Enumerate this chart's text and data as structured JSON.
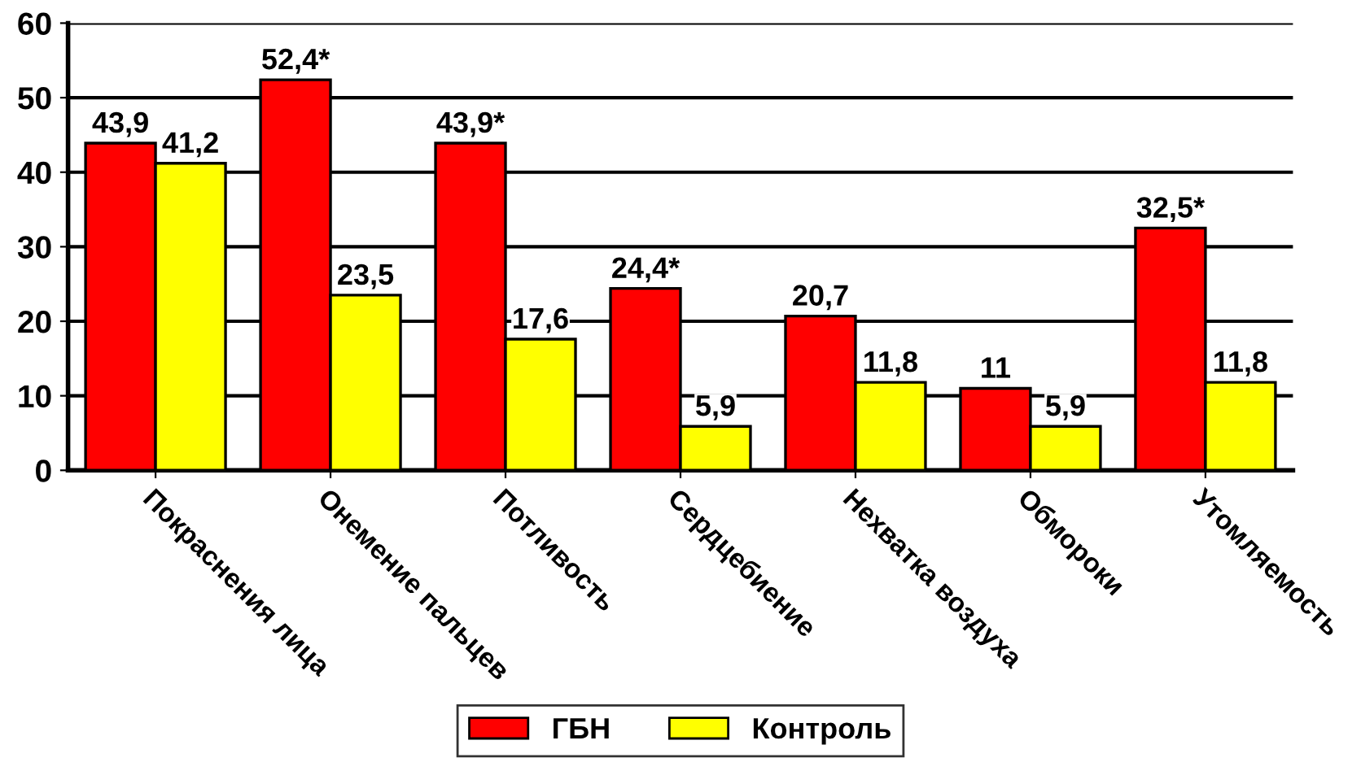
{
  "chart_data": {
    "type": "bar",
    "categories": [
      "Покраснения лица",
      "Онемение пальцев",
      "Потливость",
      "Сердцебиение",
      "Нехватка воздуха",
      "Обмороки",
      "Утомляемость"
    ],
    "series": [
      {
        "name": "ГБН",
        "color": "#ff0000",
        "values": [
          43.9,
          52.4,
          43.9,
          24.4,
          20.7,
          11,
          32.5
        ],
        "value_labels": [
          "43,9",
          "52,4*",
          "43,9*",
          "24,4*",
          "20,7",
          "11",
          "32,5*"
        ]
      },
      {
        "name": "Контроль",
        "color": "#ffff00",
        "values": [
          41.2,
          23.5,
          17.6,
          5.9,
          11.8,
          5.9,
          11.8
        ],
        "value_labels": [
          "41,2",
          "23,5",
          "17,6",
          "5,9",
          "11,8",
          "5,9",
          "11,8"
        ]
      }
    ],
    "ylim": [
      0,
      60
    ],
    "yticks": [
      0,
      10,
      20,
      30,
      40,
      50,
      60
    ],
    "grid": "y",
    "legend": "bottom"
  }
}
